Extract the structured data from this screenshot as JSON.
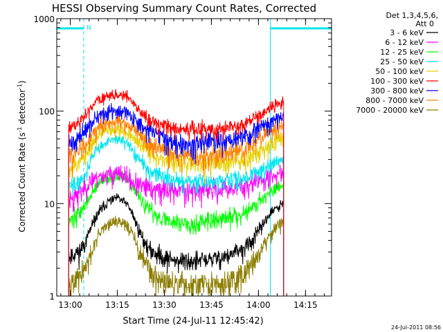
{
  "chart_data": {
    "type": "line",
    "title": "HESSI Observing Summary Count Rates, Corrected",
    "xlabel": "Start Time (24-Jul-11 12:45:42)",
    "ylabel_main": "Corrected Count Rate (s",
    "ylabel_sup1": "-1",
    "ylabel_mid": " detector",
    "ylabel_sup2": "-1",
    "ylabel_end": ")",
    "x_range_min": [
      -4.3,
      83.3
    ],
    "y_scale": "log",
    "ylim": [
      1,
      1000
    ],
    "y_ticks": [
      {
        "value": 1,
        "label": "1"
      },
      {
        "value": 10,
        "label": "10"
      },
      {
        "value": 100,
        "label": "100"
      },
      {
        "value": 1000,
        "label": "1000"
      }
    ],
    "x_ticks": [
      {
        "min": 0,
        "label": "13:00"
      },
      {
        "min": 15,
        "label": "13:15"
      },
      {
        "min": 30,
        "label": "13:30"
      },
      {
        "min": 45,
        "label": "13:45"
      },
      {
        "min": 60,
        "label": "14:00"
      },
      {
        "min": 75,
        "label": "14:15"
      }
    ],
    "legend_header": [
      "Det 1,3,4,5,6,",
      "Att 0"
    ],
    "legend_position": "top-right",
    "flag_label": "N",
    "timestamp": "24-Jul-2011 08:56",
    "colors": {
      "axis": "#000000",
      "orbit": "#00e5ee"
    },
    "night_segments": [
      {
        "start": -4.3,
        "end": 4.3
      },
      {
        "start": 63.8,
        "end": 83.3
      }
    ],
    "orbit_lines": [
      {
        "min": -4.3,
        "style": "solid"
      },
      {
        "min": 4.3,
        "style": "dashed"
      },
      {
        "min": 63.8,
        "style": "solid"
      },
      {
        "min": 83.3,
        "style": "dashed"
      }
    ],
    "data_window": [
      -0.5,
      68.0
    ],
    "series": [
      {
        "name": "3 - 6 keV",
        "color": "#000000",
        "base": 6.8,
        "seed": 11,
        "x": [
          -0.5,
          1.5,
          3,
          5,
          7,
          9,
          12,
          15,
          18,
          20,
          22,
          25,
          30,
          35,
          40,
          45,
          50,
          55,
          58,
          60,
          62,
          64,
          66,
          68
        ],
        "y": [
          2.7,
          2.9,
          3.0,
          4.0,
          5.8,
          8.0,
          10.5,
          11.5,
          10.0,
          7.5,
          5.0,
          3.2,
          2.6,
          2.4,
          2.4,
          2.5,
          2.7,
          3.2,
          4.0,
          5.0,
          6.5,
          8.0,
          9.0,
          10.0
        ]
      },
      {
        "name": "6 - 12 keV",
        "color": "#ff00ff",
        "base": 0.9,
        "seed": 23,
        "x": [
          -0.5,
          1.5,
          3,
          5,
          7,
          9,
          12,
          15,
          18,
          20,
          22,
          25,
          30,
          35,
          40,
          45,
          50,
          55,
          58,
          60,
          62,
          64,
          66,
          68
        ],
        "y": [
          11.5,
          12.0,
          13.0,
          15.5,
          18.0,
          19.5,
          21.0,
          21.0,
          19.5,
          17.0,
          15.5,
          14.5,
          14.0,
          14.0,
          14.0,
          14.0,
          14.5,
          15.5,
          16.5,
          17.5,
          18.5,
          19.5,
          20.5,
          21.0
        ]
      },
      {
        "name": "12 - 25 keV",
        "color": "#00ff00",
        "base": 2.6,
        "seed": 37,
        "x": [
          -0.5,
          1.5,
          3,
          5,
          7,
          9,
          12,
          15,
          18,
          20,
          22,
          25,
          30,
          35,
          40,
          45,
          50,
          55,
          58,
          60,
          62,
          64,
          66,
          68
        ],
        "y": [
          6.8,
          7.2,
          8.0,
          10.0,
          13.0,
          16.0,
          19.0,
          20.0,
          18.0,
          15.0,
          11.5,
          8.5,
          6.8,
          6.2,
          6.2,
          6.5,
          7.0,
          8.0,
          9.0,
          10.5,
          12.0,
          13.5,
          15.0,
          16.0
        ]
      },
      {
        "name": "25 - 50 keV",
        "color": "#00e5ee",
        "base": 1.2,
        "seed": 41,
        "x": [
          -0.5,
          1.5,
          3,
          5,
          7,
          9,
          12,
          15,
          18,
          20,
          22,
          25,
          30,
          35,
          40,
          45,
          50,
          55,
          58,
          60,
          62,
          64,
          66,
          68
        ],
        "y": [
          15.0,
          16.0,
          17.5,
          21.0,
          33.0,
          40.0,
          47.0,
          50.0,
          45.0,
          37.0,
          30.0,
          23.0,
          19.0,
          17.5,
          17.0,
          17.0,
          17.5,
          19.0,
          21.0,
          22.5,
          24.0,
          26.0,
          28.0,
          30.0
        ]
      },
      {
        "name": "50 - 100 keV",
        "color": "#e6d200",
        "base": 0.55,
        "seed": 53,
        "x": [
          -0.5,
          1.5,
          3,
          5,
          7,
          9,
          12,
          15,
          18,
          20,
          22,
          25,
          30,
          35,
          40,
          45,
          50,
          55,
          58,
          60,
          62,
          64,
          66,
          68
        ],
        "y": [
          25.0,
          26.0,
          28.0,
          34.0,
          44.0,
          55.0,
          62.0,
          65.0,
          60.0,
          52.0,
          44.0,
          36.0,
          30.0,
          28.0,
          27.0,
          27.0,
          28.0,
          30.0,
          33.0,
          36.0,
          40.0,
          45.0,
          50.0,
          55.0
        ]
      },
      {
        "name": "100 - 300 keV",
        "color": "#ff0000",
        "base": 0.35,
        "seed": 61,
        "x": [
          -0.5,
          1.5,
          3,
          5,
          7,
          9,
          12,
          15,
          18,
          20,
          22,
          25,
          30,
          35,
          40,
          45,
          50,
          55,
          58,
          60,
          62,
          64,
          66,
          68
        ],
        "y": [
          65.0,
          68.0,
          75.0,
          90.0,
          115.0,
          132.0,
          145.0,
          152.0,
          145.0,
          125.0,
          100.0,
          82.0,
          68.0,
          63.0,
          62.0,
          63.0,
          66.0,
          72.0,
          80.0,
          88.0,
          98.0,
          110.0,
          118.0,
          122.0
        ]
      },
      {
        "name": "300 - 800 keV",
        "color": "#0000ff",
        "base": 0.3,
        "seed": 71,
        "x": [
          -0.5,
          1.5,
          3,
          5,
          7,
          9,
          12,
          15,
          18,
          20,
          22,
          25,
          30,
          35,
          40,
          45,
          50,
          55,
          58,
          60,
          62,
          64,
          66,
          68
        ],
        "y": [
          45.0,
          47.0,
          52.0,
          62.0,
          78.0,
          88.0,
          96.0,
          100.0,
          96.0,
          86.0,
          72.0,
          60.0,
          50.0,
          46.0,
          45.0,
          45.0,
          47.0,
          52.0,
          58.0,
          64.0,
          70.0,
          77.0,
          82.0,
          85.0
        ]
      },
      {
        "name": "800 - 7000 keV",
        "color": "#ff8000",
        "base": 0.35,
        "seed": 83,
        "x": [
          -0.5,
          1.5,
          3,
          5,
          7,
          9,
          12,
          15,
          18,
          20,
          22,
          25,
          30,
          35,
          40,
          45,
          50,
          55,
          58,
          60,
          62,
          64,
          66,
          68
        ],
        "y": [
          33.0,
          34.0,
          38.0,
          45.0,
          58.0,
          68.0,
          74.0,
          77.0,
          73.0,
          64.0,
          54.0,
          44.0,
          37.0,
          34.0,
          33.0,
          33.0,
          35.0,
          39.0,
          44.0,
          50.0,
          56.0,
          62.0,
          67.0,
          70.0
        ]
      },
      {
        "name": "7000 - 20000 keV",
        "color": "#8b7d00",
        "base": 6.5,
        "seed": 97,
        "x": [
          -0.5,
          1.5,
          3,
          5,
          7,
          9,
          12,
          15,
          18,
          20,
          22,
          25,
          30,
          35,
          40,
          45,
          50,
          55,
          58,
          60,
          62,
          64,
          66,
          68
        ],
        "y": [
          1.4,
          1.5,
          1.6,
          2.0,
          3.0,
          4.5,
          6.0,
          6.5,
          6.0,
          4.5,
          3.0,
          1.9,
          1.4,
          1.3,
          1.3,
          1.3,
          1.4,
          1.7,
          2.2,
          2.8,
          3.8,
          4.8,
          5.8,
          6.5
        ]
      }
    ]
  }
}
